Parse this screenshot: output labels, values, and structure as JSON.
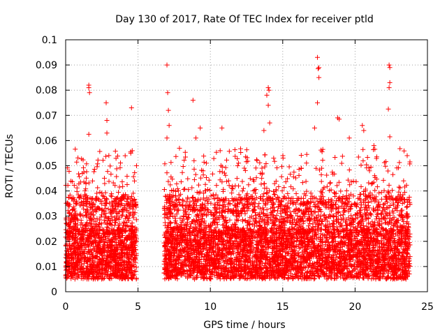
{
  "chart_data": {
    "type": "scatter",
    "title": "Day 130 of 2017, Rate Of TEC Index for receiver ptld",
    "xlabel": "GPS time / hours",
    "ylabel": "ROTI / TECUs",
    "xlim": [
      0,
      25
    ],
    "ylim": [
      0,
      0.1
    ],
    "x_ticks": [
      0,
      5,
      10,
      15,
      20,
      25
    ],
    "y_ticks": [
      0,
      0.01,
      0.02,
      0.03,
      0.04,
      0.05,
      0.06,
      0.07,
      0.08,
      0.09,
      0.1
    ],
    "x_tick_labels": [
      "0",
      "5",
      "10",
      "15",
      "20",
      "25"
    ],
    "y_tick_labels": [
      "0",
      "0.01",
      "0.02",
      "0.03",
      "0.04",
      "0.05",
      "0.06",
      "0.07",
      "0.08",
      "0.09",
      "0.1"
    ],
    "grid": true,
    "marker": "+",
    "series": [
      {
        "name": "ROTI",
        "color": "#ff0000",
        "data_gap_hours": [
          4.95,
          6.8
        ],
        "dense_band": [
          0.005,
          0.025
        ],
        "segments": [
          {
            "start": 0.0,
            "end": 4.9,
            "count": 1600
          },
          {
            "start": 6.8,
            "end": 23.8,
            "count": 5200
          }
        ],
        "outliers": [
          [
            1.6,
            0.082
          ],
          [
            1.6,
            0.081
          ],
          [
            1.65,
            0.079
          ],
          [
            1.6,
            0.0625
          ],
          [
            2.8,
            0.075
          ],
          [
            2.85,
            0.063
          ],
          [
            2.85,
            0.068
          ],
          [
            4.55,
            0.073
          ],
          [
            4.6,
            0.056
          ],
          [
            4.5,
            0.055
          ],
          [
            7.0,
            0.09
          ],
          [
            7.05,
            0.079
          ],
          [
            7.1,
            0.072
          ],
          [
            7.15,
            0.066
          ],
          [
            7.0,
            0.061
          ],
          [
            8.8,
            0.076
          ],
          [
            9.3,
            0.065
          ],
          [
            10.8,
            0.065
          ],
          [
            9.0,
            0.061
          ],
          [
            13.7,
            0.064
          ],
          [
            13.9,
            0.078
          ],
          [
            14.0,
            0.081
          ],
          [
            14.05,
            0.08
          ],
          [
            14.0,
            0.074
          ],
          [
            14.1,
            0.067
          ],
          [
            17.4,
            0.093
          ],
          [
            17.5,
            0.089
          ],
          [
            17.45,
            0.0885
          ],
          [
            17.5,
            0.085
          ],
          [
            17.4,
            0.075
          ],
          [
            17.2,
            0.065
          ],
          [
            18.8,
            0.069
          ],
          [
            18.9,
            0.0685
          ],
          [
            20.5,
            0.066
          ],
          [
            20.6,
            0.064
          ],
          [
            22.35,
            0.09
          ],
          [
            22.4,
            0.089
          ],
          [
            22.4,
            0.083
          ],
          [
            22.35,
            0.081
          ],
          [
            22.3,
            0.0725
          ],
          [
            22.4,
            0.0615
          ],
          [
            19.6,
            0.061
          ],
          [
            21.3,
            0.058
          ],
          [
            23.6,
            0.054
          ]
        ]
      }
    ]
  }
}
